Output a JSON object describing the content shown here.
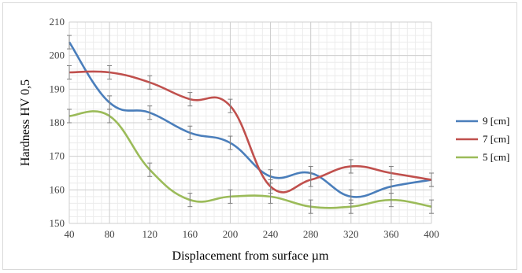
{
  "chart_data": {
    "type": "line",
    "title": "",
    "xlabel": "Displacement from surface µm",
    "ylabel": "Hardness HV 0,5",
    "x": [
      40,
      80,
      120,
      160,
      200,
      240,
      280,
      320,
      360,
      400
    ],
    "xlim": [
      40,
      400
    ],
    "ylim": [
      150,
      210
    ],
    "xticks": [
      "40",
      "80",
      "120",
      "160",
      "200",
      "240",
      "280",
      "320",
      "360",
      "400"
    ],
    "yticks": [
      "150",
      "160",
      "170",
      "180",
      "190",
      "200",
      "210"
    ],
    "grid": true,
    "minor_grid": true,
    "error_bars": true,
    "error": 2,
    "legend_position": "right",
    "series": [
      {
        "name": "9  [cm]",
        "color": "#4a7ebb",
        "values": [
          204,
          186,
          183,
          177,
          174,
          164,
          165,
          158,
          161,
          163
        ]
      },
      {
        "name": "7  [cm]",
        "color": "#c0504d",
        "values": [
          195,
          195,
          192,
          187,
          185,
          161,
          163,
          167,
          165,
          163
        ]
      },
      {
        "name": "5  [cm]",
        "color": "#9bbb59",
        "values": [
          182,
          182,
          166,
          157,
          158,
          158,
          155,
          155,
          157,
          155
        ]
      }
    ]
  }
}
